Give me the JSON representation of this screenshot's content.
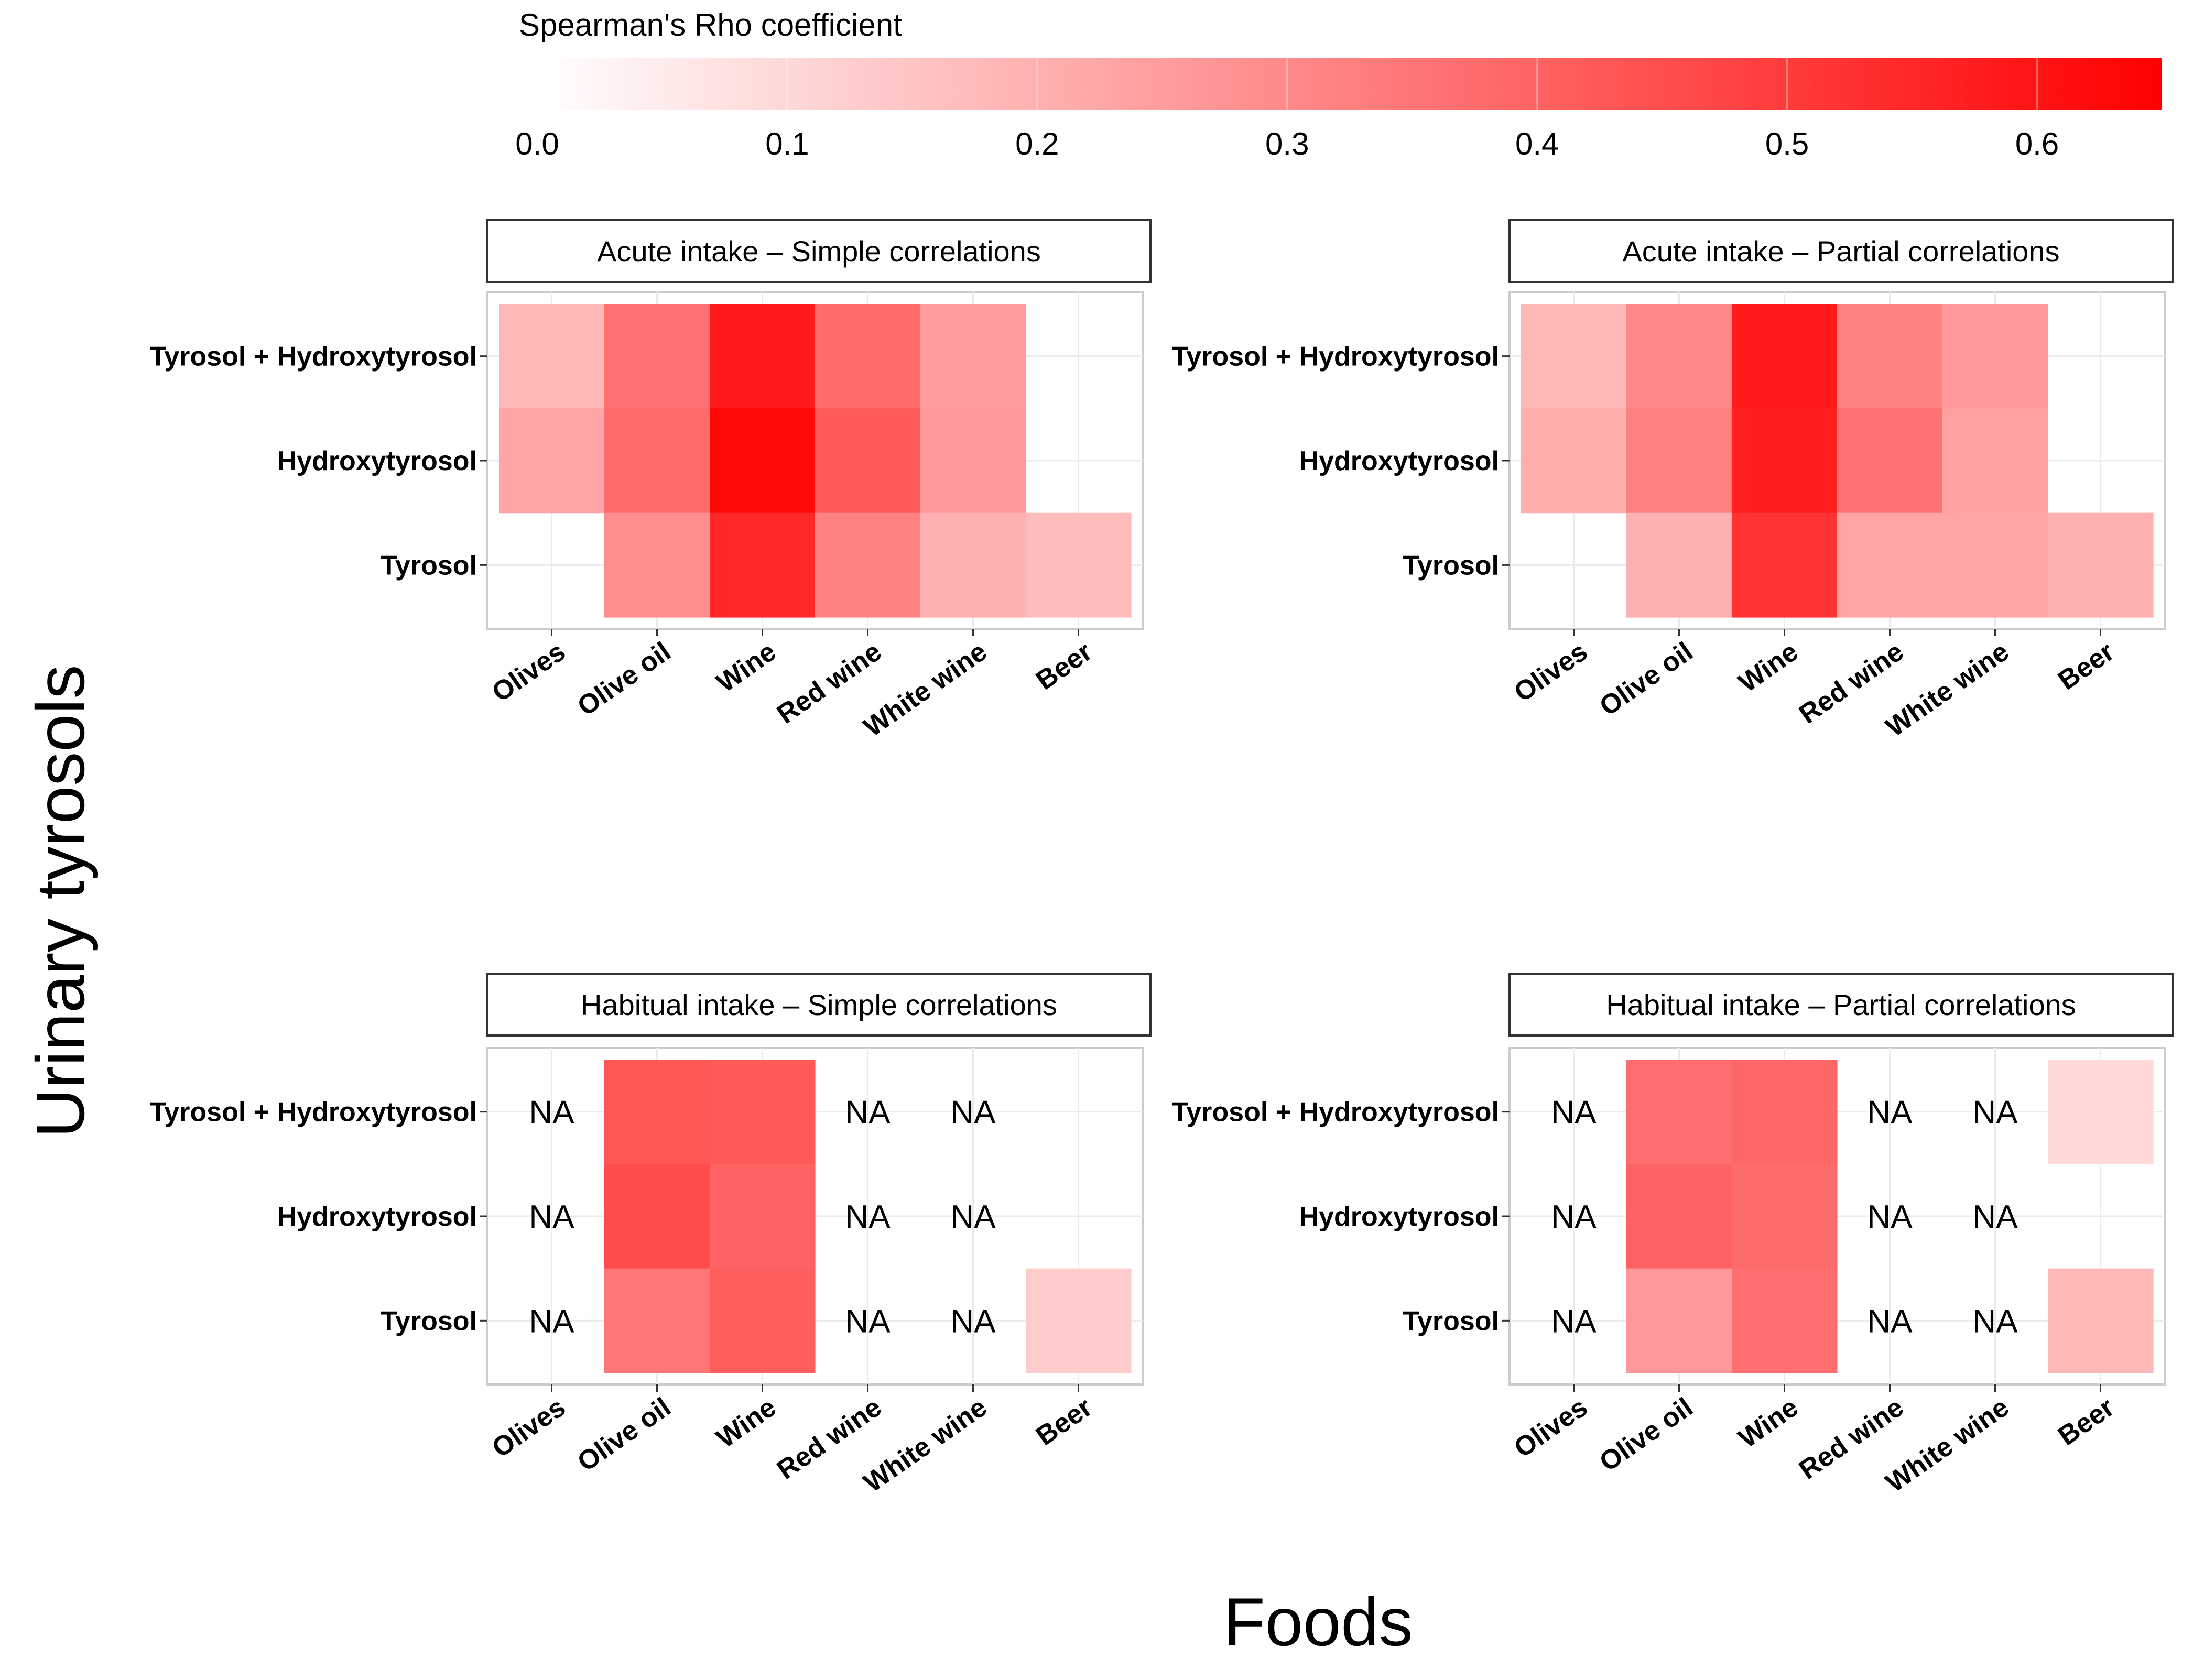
{
  "chart_data": {
    "type": "heatmap",
    "legend": {
      "title": "Spearman's Rho coefficient",
      "ticks": [
        "0.0",
        "0.1",
        "0.2",
        "0.3",
        "0.4",
        "0.5",
        "0.6"
      ],
      "range": [
        0,
        0.65
      ],
      "color_low": "#ffffff",
      "color_high": "#ff0000"
    },
    "xlabel": "Foods",
    "ylabel": "Urinary tyrosols",
    "na_label": "NA",
    "rows": [
      "Tyrosol + Hydroxytyrosol",
      "Hydroxytyrosol",
      "Tyrosol"
    ],
    "columns": [
      "Olives",
      "Olive oil",
      "Wine",
      "Red wine",
      "White wine",
      "Beer"
    ],
    "panels": [
      {
        "title": "Acute intake – Simple correlations",
        "values": [
          [
            0.18,
            0.36,
            0.58,
            0.38,
            0.25,
            0
          ],
          [
            0.23,
            0.38,
            0.63,
            0.42,
            0.26,
            0
          ],
          [
            0,
            0.29,
            0.55,
            0.32,
            0.2,
            0.17
          ]
        ]
      },
      {
        "title": "Acute intake – Partial correlations",
        "values": [
          [
            0.18,
            0.3,
            0.58,
            0.32,
            0.26,
            0
          ],
          [
            0.21,
            0.33,
            0.57,
            0.36,
            0.24,
            0
          ],
          [
            0,
            0.2,
            0.52,
            0.23,
            0.23,
            0.2
          ]
        ]
      },
      {
        "title": "Habitual intake – Simple correlations",
        "values": [
          [
            null,
            0.43,
            0.42,
            null,
            null,
            0
          ],
          [
            null,
            0.46,
            0.4,
            null,
            null,
            0
          ],
          [
            null,
            0.35,
            0.41,
            null,
            null,
            0.13
          ]
        ]
      },
      {
        "title": "Habitual intake – Partial correlations",
        "values": [
          [
            null,
            0.37,
            0.39,
            null,
            null,
            0.1
          ],
          [
            null,
            0.4,
            0.38,
            null,
            null,
            0
          ],
          [
            null,
            0.26,
            0.37,
            null,
            null,
            0.18
          ]
        ]
      }
    ]
  }
}
